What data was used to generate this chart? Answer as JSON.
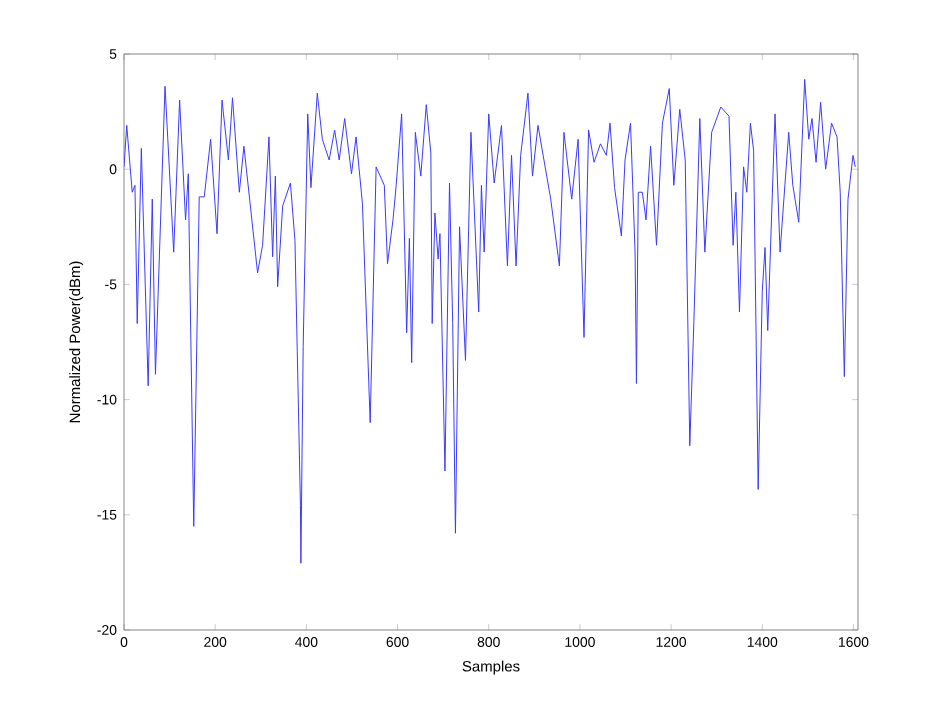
{
  "chart_data": {
    "type": "line",
    "xlabel": "Samples",
    "ylabel": "Normalized Power(dBm)",
    "xlim": [
      0,
      1610
    ],
    "ylim": [
      -20,
      5
    ],
    "xticks": [
      0,
      200,
      400,
      600,
      800,
      1000,
      1200,
      1400,
      1600
    ],
    "yticks": [
      -20,
      -15,
      -10,
      -5,
      0,
      5
    ],
    "grid": false,
    "marker": "none",
    "line_style": "solid",
    "series": [
      {
        "color": "#3a3aff",
        "x": [
          0,
          6,
          18,
          24,
          29,
          38,
          53,
          62,
          69,
          90,
          109,
          122,
          135,
          141,
          153,
          165,
          176,
          190,
          204,
          215,
          229,
          238,
          253,
          263,
          293,
          304,
          318,
          326,
          332,
          337,
          348,
          365,
          375,
          387,
          388,
          393,
          403,
          410,
          424,
          435,
          450,
          462,
          472,
          484,
          499,
          509,
          523,
          540,
          553,
          571,
          578,
          590,
          597,
          609,
          620,
          626,
          631,
          639,
          651,
          663,
          673,
          676,
          682,
          689,
          693,
          704,
          714,
          721,
          727,
          736,
          749,
          761,
          778,
          784,
          790,
          800,
          812,
          828,
          841,
          850,
          860,
          870,
          886,
          896,
          908,
          936,
          955,
          965,
          982,
          996,
          1009,
          1019,
          1031,
          1045,
          1058,
          1066,
          1076,
          1091,
          1099,
          1111,
          1121,
          1124,
          1128,
          1137,
          1145,
          1155,
          1168,
          1181,
          1196,
          1206,
          1219,
          1231,
          1241,
          1250,
          1263,
          1274,
          1289,
          1309,
          1327,
          1336,
          1342,
          1350,
          1359,
          1366,
          1374,
          1381,
          1391,
          1400,
          1406,
          1412,
          1428,
          1439,
          1458,
          1467,
          1480,
          1493,
          1502,
          1509,
          1518,
          1528,
          1539,
          1552,
          1564,
          1571,
          1580,
          1588,
          1599,
          1604
        ],
        "values": [
          0.1,
          1.9,
          -1.0,
          -0.7,
          -6.7,
          0.9,
          -9.4,
          -1.3,
          -8.9,
          3.6,
          -3.6,
          3.0,
          -2.2,
          -0.2,
          -15.5,
          -1.2,
          -1.2,
          1.3,
          -2.8,
          3.0,
          0.4,
          3.1,
          -1.0,
          1.0,
          -4.5,
          -3.3,
          1.4,
          -3.8,
          -0.3,
          -5.1,
          -1.6,
          -0.6,
          -3.1,
          -14.6,
          -17.1,
          -7.7,
          2.4,
          -0.8,
          3.3,
          1.3,
          0.4,
          1.7,
          0.4,
          2.2,
          -0.2,
          1.4,
          -1.5,
          -11.0,
          0.1,
          -0.7,
          -4.1,
          -2.2,
          -0.7,
          2.4,
          -7.1,
          -3.0,
          -8.4,
          1.6,
          -0.3,
          2.8,
          0.7,
          -6.7,
          -1.9,
          -3.9,
          -2.8,
          -13.1,
          -0.6,
          -6.7,
          -15.8,
          -2.5,
          -8.3,
          1.6,
          -6.2,
          -0.7,
          -3.6,
          2.4,
          -0.6,
          1.9,
          -4.2,
          0.6,
          -4.2,
          0.6,
          3.3,
          -0.3,
          1.9,
          -1.3,
          -4.2,
          1.6,
          -1.3,
          1.3,
          -7.3,
          1.7,
          0.3,
          1.1,
          0.6,
          2.0,
          -0.8,
          -2.9,
          0.4,
          2.0,
          -3.6,
          -9.3,
          -1.0,
          -1.0,
          -2.2,
          1.0,
          -3.3,
          2.0,
          3.5,
          -0.7,
          2.6,
          0.4,
          -12.0,
          -6.6,
          2.2,
          -3.6,
          1.6,
          2.7,
          2.3,
          -3.3,
          -1.0,
          -6.2,
          0.1,
          -1.0,
          2.0,
          0.8,
          -13.9,
          -5.3,
          -3.4,
          -7.0,
          2.4,
          -3.6,
          1.6,
          -0.7,
          -2.3,
          3.9,
          1.3,
          2.2,
          0.3,
          2.9,
          0.0,
          2.0,
          1.4,
          -1.0,
          -9.0,
          -1.3,
          0.6,
          0.1
        ]
      }
    ]
  }
}
